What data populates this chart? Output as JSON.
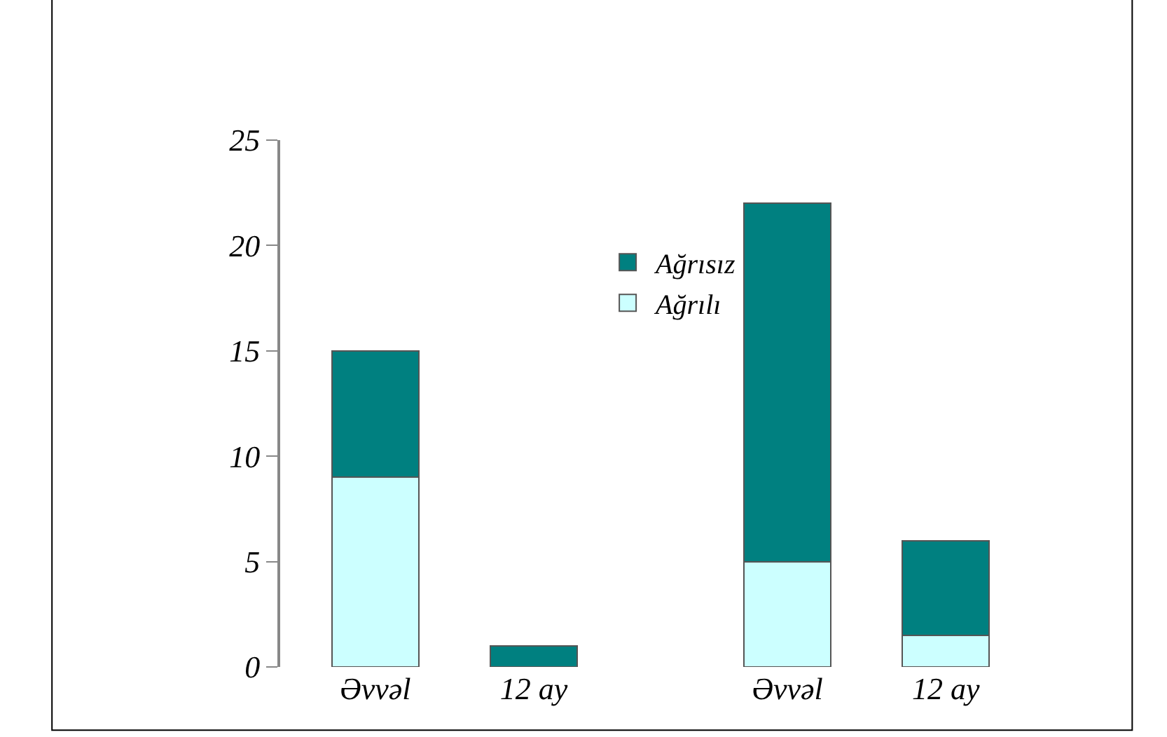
{
  "chart_data": {
    "type": "bar",
    "stacked": true,
    "categories": [
      "Əvvəl",
      "12 ay",
      "Əvvəl",
      "12 ay"
    ],
    "series": [
      {
        "name": "Ağrılı",
        "color": "#ccffff",
        "values": [
          9,
          0,
          5,
          1.5
        ]
      },
      {
        "name": "Ağrısız",
        "color": "#008080",
        "values": [
          6,
          1,
          17,
          4.5
        ]
      }
    ],
    "ylim": [
      0,
      25
    ],
    "yticks": [
      0,
      5,
      10,
      15,
      20,
      25
    ],
    "legend": "top"
  }
}
